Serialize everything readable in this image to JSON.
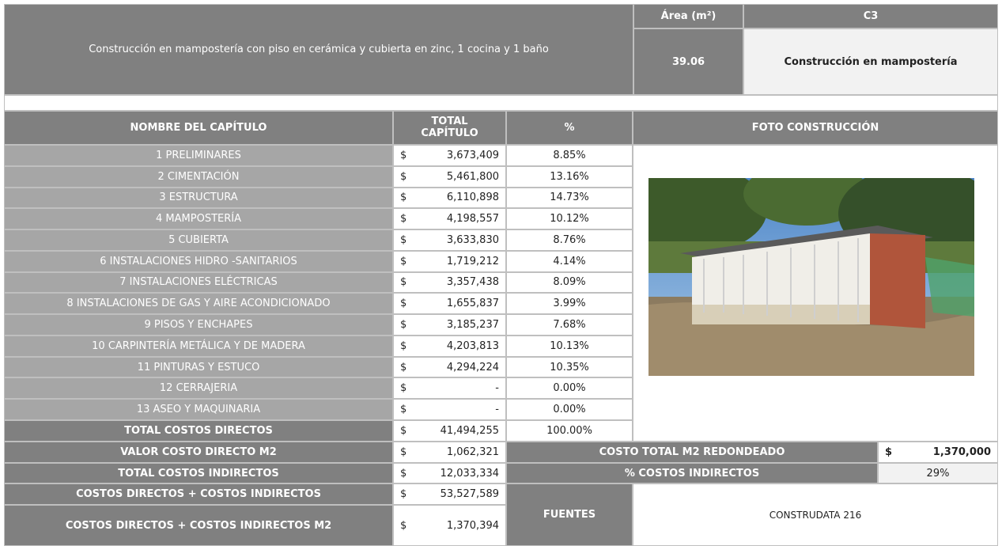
{
  "header": {
    "description": "Construcción en mampostería con piso en cerámica y cubierta en zinc, 1 cocina y 1 baño",
    "area_label": "Área (m²)",
    "area_value": "39.06",
    "code": "C3",
    "type": "Construcción en mampostería"
  },
  "table": {
    "columns": [
      "NOMBRE DEL CAPÍTULO",
      "TOTAL CAPÍTULO",
      "%",
      "FOTO CONSTRUCCIÓN"
    ],
    "rows": [
      {
        "name": "1  PRELIMINARES",
        "currency": "$",
        "total": "3,673,409",
        "percent": "8.85%"
      },
      {
        "name": "2 CIMENTACIÓN",
        "currency": "$",
        "total": "5,461,800",
        "percent": "13.16%"
      },
      {
        "name": "3 ESTRUCTURA",
        "currency": "$",
        "total": "6,110,898",
        "percent": "14.73%"
      },
      {
        "name": "4 MAMPOSTERÍA",
        "currency": "$",
        "total": "4,198,557",
        "percent": "10.12%"
      },
      {
        "name": "5 CUBIERTA",
        "currency": "$",
        "total": "3,633,830",
        "percent": "8.76%"
      },
      {
        "name": "6 INSTALACIONES HIDRO -SANITARIOS",
        "currency": "$",
        "total": "1,719,212",
        "percent": "4.14%"
      },
      {
        "name": "7 INSTALACIONES ELÉCTRICAS",
        "currency": "$",
        "total": "3,357,438",
        "percent": "8.09%"
      },
      {
        "name": "8 INSTALACIONES DE GAS Y AIRE ACONDICIONADO",
        "currency": "$",
        "total": "1,655,837",
        "percent": "3.99%"
      },
      {
        "name": "9 PISOS Y ENCHAPES",
        "currency": "$",
        "total": "3,185,237",
        "percent": "7.68%"
      },
      {
        "name": "10 CARPINTERÍA METÁLICA Y DE MADERA",
        "currency": "$",
        "total": "4,203,813",
        "percent": "10.13%"
      },
      {
        "name": "11 PINTURAS Y ESTUCO",
        "currency": "$",
        "total": "4,294,224",
        "percent": "10.35%"
      },
      {
        "name": "12 CERRAJERIA",
        "currency": "$",
        "total": "-",
        "percent": "0.00%"
      },
      {
        "name": "13 ASEO Y MAQUINARIA",
        "currency": "$",
        "total": "-",
        "percent": "0.00%"
      }
    ]
  },
  "totals": [
    {
      "name": "TOTAL COSTOS DIRECTOS",
      "currency": "$",
      "total": "41,494,255",
      "percent": "100.00%"
    },
    {
      "name": "VALOR COSTO DIRECTO M2",
      "currency": "$",
      "total": "1,062,321"
    },
    {
      "name": "TOTAL COSTOS INDIRECTOS",
      "currency": "$",
      "total": "12,033,334"
    },
    {
      "name": "COSTOS DIRECTOS + COSTOS INDIRECTOS",
      "currency": "$",
      "total": "53,527,589"
    },
    {
      "name": "COSTOS DIRECTOS + COSTOS INDIRECTOS M2",
      "currency": "$",
      "total": "1,370,394"
    }
  ],
  "summary": {
    "rounded_label": "COSTO TOTAL M2 REDONDEADO",
    "rounded_currency": "$",
    "rounded_value": "1,370,000",
    "indirect_label": "% COSTOS INDIRECTOS",
    "indirect_value": "29%",
    "sources_label": "FUENTES",
    "sources_value": "CONSTRUDATA 216"
  }
}
